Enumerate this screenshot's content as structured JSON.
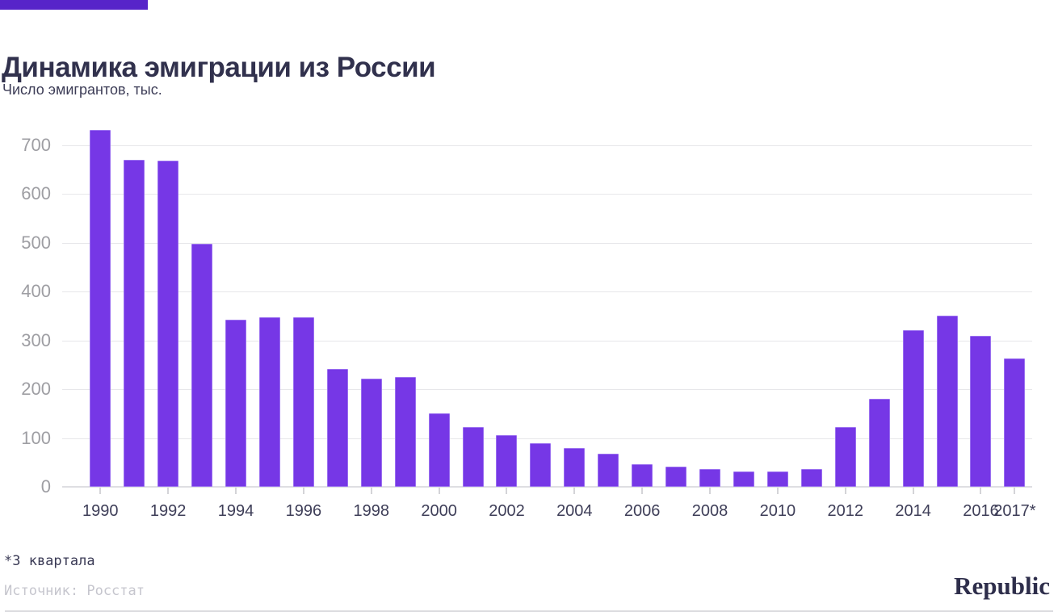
{
  "header": {
    "title": "Динамика эмиграции из России",
    "subtitle": "Число эмигрантов, тыс."
  },
  "chart_data": {
    "type": "bar",
    "title": "Динамика эмиграции из России",
    "ylabel": "Число эмигрантов, тыс.",
    "categories": [
      "1990",
      "1991",
      "1992",
      "1993",
      "1994",
      "1995",
      "1996",
      "1997",
      "1998",
      "1999",
      "2000",
      "2001",
      "2002",
      "2003",
      "2004",
      "2005",
      "2006",
      "2007",
      "2008",
      "2009",
      "2010",
      "2011",
      "2012",
      "2013",
      "2014",
      "2015",
      "2016",
      "2017*"
    ],
    "values": [
      730,
      669,
      667,
      497,
      342,
      347,
      347,
      241,
      221,
      224,
      151,
      122,
      106,
      90,
      80,
      68,
      47,
      42,
      36,
      31,
      32,
      36,
      122,
      180,
      320,
      351,
      309,
      262
    ],
    "yticks": [
      0,
      100,
      200,
      300,
      400,
      500,
      600,
      700
    ],
    "ylim": [
      0,
      750
    ],
    "grid": true,
    "legend": "none",
    "x_tick_labels_shown": [
      "1990",
      "1992",
      "1994",
      "1996",
      "1998",
      "2000",
      "2002",
      "2004",
      "2006",
      "2008",
      "2010",
      "2012",
      "2014",
      "2016",
      "2017*"
    ],
    "bar_color": "#7A3BE8"
  },
  "footer": {
    "footnote": "*3 квартала",
    "source": "Источник: Росстат",
    "brand": "Republic"
  },
  "colors": {
    "accent_bar": "#5724C9",
    "bar": "#7A3BE8",
    "bar_edge": "#9A6FF0",
    "grid_line": "#E7E7EA",
    "axis_line": "#DEDEE2",
    "y_label": "#9E9EA3",
    "x_label": "#3E3E58",
    "title": "#31314D",
    "subtitle": "#3D3D57",
    "footnote": "#3A3A55",
    "source": "#C6C6CE",
    "brand": "#2E2E4B",
    "divider": "#DCDCE0"
  }
}
